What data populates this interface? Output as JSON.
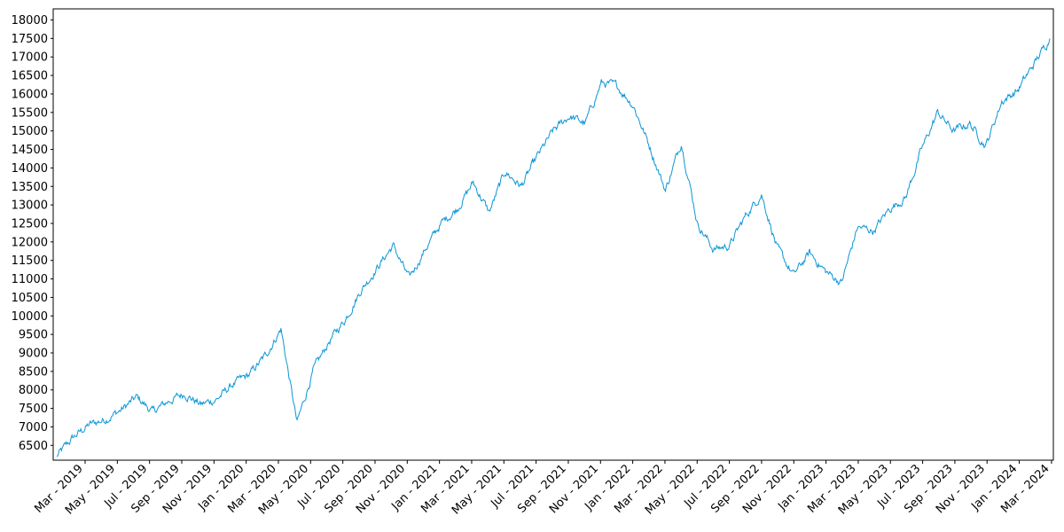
{
  "chart_data": {
    "type": "line",
    "title": "",
    "xlabel": "",
    "ylabel": "",
    "ylim": [
      6100,
      18300
    ],
    "y_ticks": [
      6500,
      7000,
      7500,
      8000,
      8500,
      9000,
      9500,
      10000,
      10500,
      11000,
      11500,
      12000,
      12500,
      13000,
      13500,
      14000,
      14500,
      15000,
      15500,
      16000,
      16500,
      17000,
      17500,
      18000
    ],
    "x_ticks": [
      "Mar - 2019",
      "May - 2019",
      "Jul - 2019",
      "Sep - 2019",
      "Nov - 2019",
      "Jan - 2020",
      "Mar - 2020",
      "May - 2020",
      "Jul - 2020",
      "Sep - 2020",
      "Nov - 2020",
      "Jan - 2021",
      "Mar - 2021",
      "May - 2021",
      "Jul - 2021",
      "Sep - 2021",
      "Nov - 2021",
      "Jan - 2022",
      "Mar - 2022",
      "May - 2022",
      "Jul - 2022",
      "Sep - 2022",
      "Nov - 2022",
      "Jan - 2023",
      "Mar - 2023",
      "May - 2023",
      "Jul - 2023",
      "Sep - 2023",
      "Nov - 2023",
      "Jan - 2024",
      "Mar - 2024"
    ],
    "grid": false,
    "legend": "none",
    "colors": {
      "line": "#0a96d6",
      "axis": "#000000"
    },
    "series": [
      {
        "x": [
          "2019-01",
          "2019-02",
          "2019-03",
          "2019-04",
          "2019-05",
          "2019-06",
          "2019-07",
          "2019-08",
          "2019-09",
          "2019-10",
          "2019-11",
          "2019-12",
          "2020-01",
          "2020-02",
          "2020-03",
          "2020-04",
          "2020-05",
          "2020-06",
          "2020-07",
          "2020-08",
          "2020-09",
          "2020-10",
          "2020-11",
          "2020-12",
          "2021-01",
          "2021-02",
          "2021-03",
          "2021-04",
          "2021-05",
          "2021-06",
          "2021-07",
          "2021-08",
          "2021-09",
          "2021-10",
          "2021-11",
          "2021-12",
          "2022-01",
          "2022-02",
          "2022-03",
          "2022-04",
          "2022-05",
          "2022-06",
          "2022-07",
          "2022-08",
          "2022-09",
          "2022-10",
          "2022-11",
          "2022-12",
          "2023-01",
          "2023-02",
          "2023-03",
          "2023-04",
          "2023-05",
          "2023-06",
          "2023-07",
          "2023-08",
          "2023-09",
          "2023-10",
          "2023-11",
          "2023-12",
          "2024-01",
          "2024-02",
          "2024-03"
        ],
        "values": [
          6200,
          6700,
          7050,
          7200,
          7450,
          7800,
          7400,
          7700,
          7900,
          7600,
          7750,
          8150,
          8400,
          8900,
          9650,
          7100,
          8500,
          9300,
          9900,
          10700,
          11300,
          11900,
          11000,
          11800,
          12500,
          12900,
          13600,
          12800,
          13900,
          13500,
          14300,
          15000,
          15400,
          15200,
          16300,
          16200,
          15700,
          14600,
          13400,
          14700,
          12500,
          11800,
          11900,
          12700,
          13300,
          11800,
          11100,
          11700,
          11200,
          10900,
          12400,
          12300,
          12900,
          13200,
          14500,
          15500,
          15000,
          15200,
          14600,
          15800,
          16100,
          16800,
          17500
        ]
      }
    ]
  }
}
